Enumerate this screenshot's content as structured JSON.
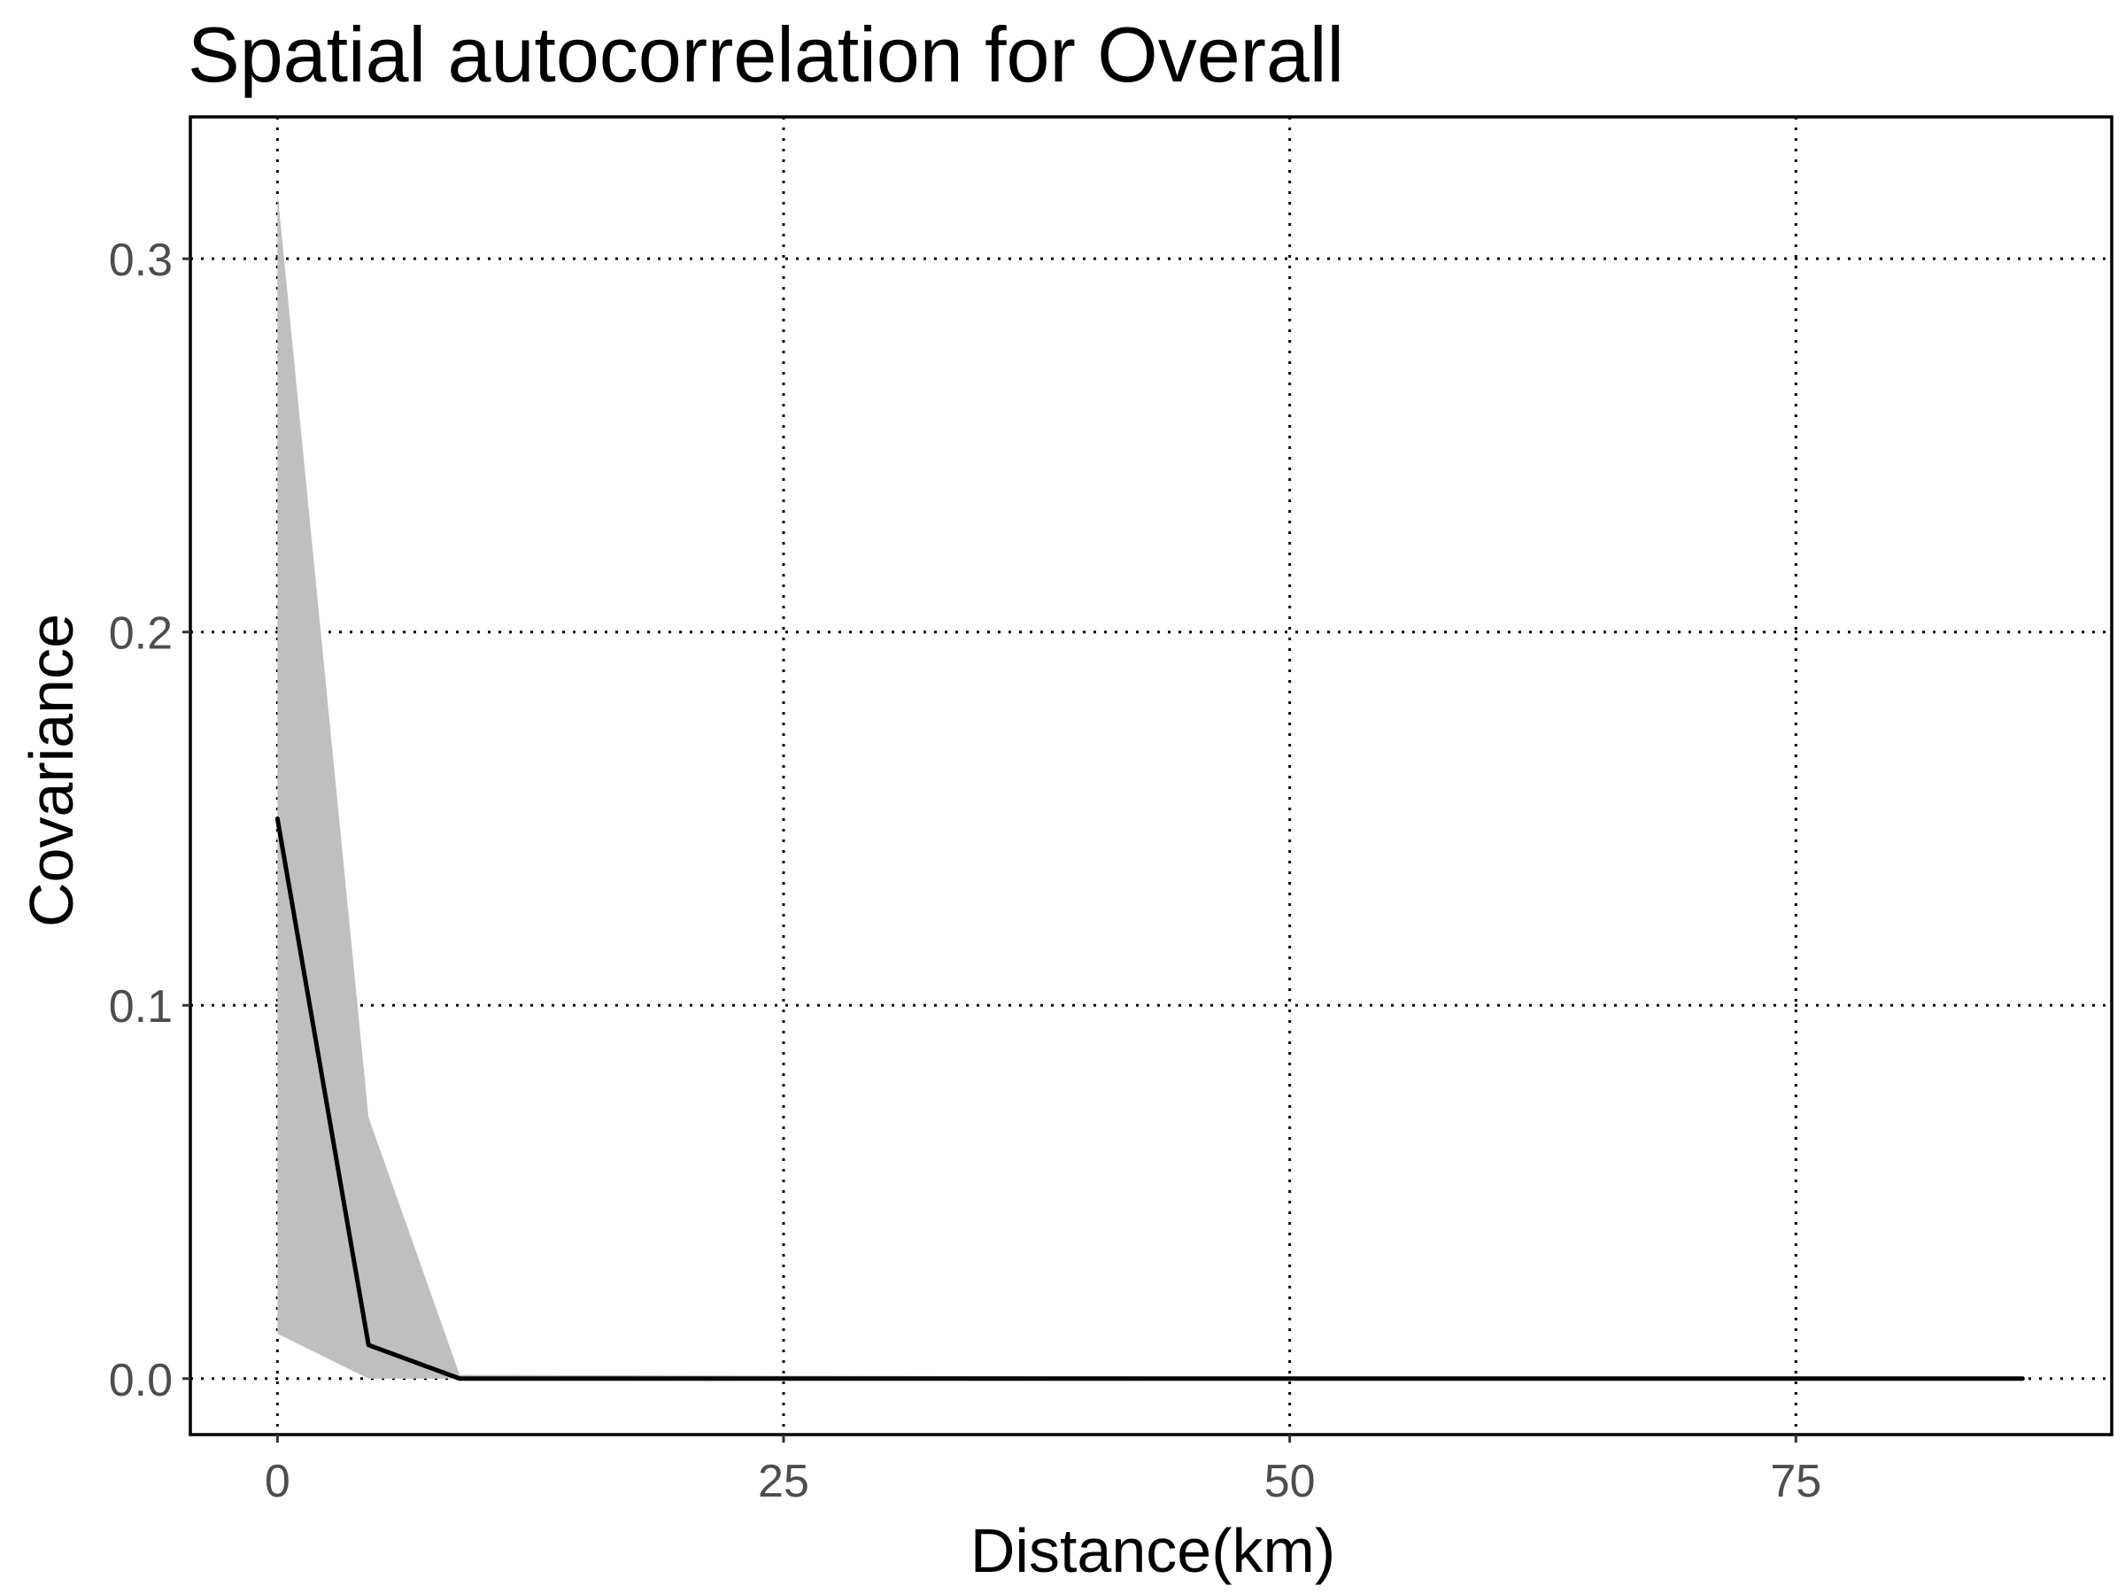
{
  "chart_data": {
    "type": "line",
    "title": "Spatial autocorrelation for Overall",
    "xlabel": "Distance(km)",
    "ylabel": "Covariance",
    "xlim": [
      -4.3,
      90.6
    ],
    "ylim": [
      -0.015,
      0.338
    ],
    "xticks": [
      0,
      25,
      50,
      75
    ],
    "xtick_labels": [
      "0",
      "25",
      "50",
      "75"
    ],
    "yticks": [
      0.0,
      0.1,
      0.2,
      0.3
    ],
    "ytick_labels": [
      "0.0",
      "0.1",
      "0.2",
      "0.3"
    ],
    "grid": "major, dotted",
    "legend": "none",
    "series": [
      {
        "x": [
          0,
          4.5,
          9,
          86.2
        ],
        "y": [
          0.15,
          0.009,
          0.0,
          0.0
        ],
        "ymin": [
          0.012,
          0.0,
          0.0,
          0.0
        ],
        "ymax": [
          0.318,
          0.07,
          0.001,
          0.0
        ]
      }
    ],
    "colors": {
      "line": "#000000",
      "ribbon": "#bfbfbf",
      "grid": "#000000",
      "tick_label": "#4d4d4d"
    }
  }
}
